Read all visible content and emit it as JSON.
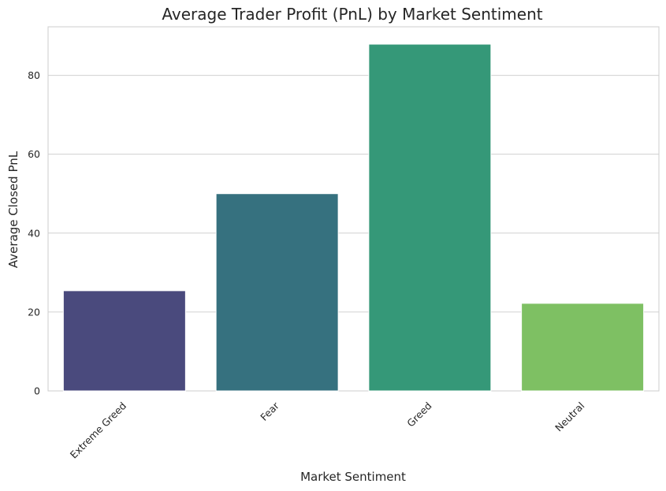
{
  "chart_data": {
    "type": "bar",
    "title": "Average Trader Profit (PnL) by Market Sentiment",
    "xlabel": "Market Sentiment",
    "ylabel": "Average Closed PnL",
    "categories": [
      "Extreme Greed",
      "Fear",
      "Greed",
      "Neutral"
    ],
    "values": [
      25.4,
      50.0,
      87.9,
      22.2
    ],
    "colors": [
      "#4a4a7d",
      "#36717f",
      "#359878",
      "#7ec063"
    ],
    "yticks": [
      0,
      20,
      40,
      60,
      80
    ],
    "ylim": [
      0,
      92.3
    ],
    "grid": true,
    "legend": "none"
  }
}
